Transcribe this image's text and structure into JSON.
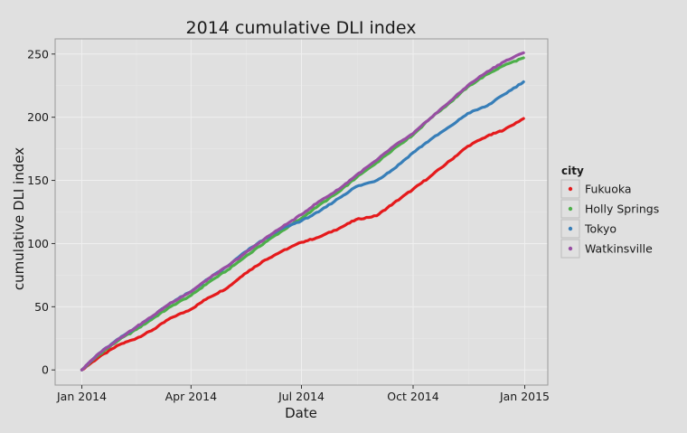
{
  "chart_data": {
    "type": "line",
    "title": "2014 cumulative DLI index",
    "xlabel": "Date",
    "ylabel": "cumulative DLI index",
    "x_ticks": [
      "2014-01-01",
      "2014-04-01",
      "2014-07-01",
      "2014-10-01",
      "2015-01-01"
    ],
    "x_tick_labels": [
      "Jan 2014",
      "Apr 2014",
      "Jul 2014",
      "Oct 2014",
      "Jan 2015"
    ],
    "xlim": [
      "2013-12-10",
      "2015-01-20"
    ],
    "y_ticks": [
      0,
      50,
      100,
      150,
      200,
      250
    ],
    "ylim": [
      -12,
      262
    ],
    "grid": true,
    "legend": {
      "title": "city",
      "position": "right"
    },
    "series": [
      {
        "name": "Fukuoka",
        "color": "#e41a1c",
        "x": [
          "2014-01-01",
          "2014-01-15",
          "2014-02-01",
          "2014-02-15",
          "2014-03-01",
          "2014-03-15",
          "2014-04-01",
          "2014-04-15",
          "2014-05-01",
          "2014-05-15",
          "2014-06-01",
          "2014-06-15",
          "2014-07-01",
          "2014-07-15",
          "2014-08-01",
          "2014-08-15",
          "2014-09-01",
          "2014-09-15",
          "2014-10-01",
          "2014-10-15",
          "2014-11-01",
          "2014-11-15",
          "2014-12-01",
          "2014-12-15",
          "2014-12-31"
        ],
        "values": [
          0,
          10,
          20,
          25,
          32,
          41,
          48,
          57,
          65,
          76,
          87,
          94,
          101,
          105,
          112,
          119,
          122,
          132,
          143,
          153,
          166,
          177,
          185,
          190,
          199
        ]
      },
      {
        "name": "Holly Springs",
        "color": "#4daf4a",
        "x": [
          "2014-01-01",
          "2014-01-15",
          "2014-02-01",
          "2014-02-15",
          "2014-03-01",
          "2014-03-15",
          "2014-04-01",
          "2014-04-15",
          "2014-05-01",
          "2014-05-15",
          "2014-06-01",
          "2014-06-15",
          "2014-07-01",
          "2014-07-15",
          "2014-08-01",
          "2014-08-15",
          "2014-09-01",
          "2014-09-15",
          "2014-10-01",
          "2014-10-15",
          "2014-11-01",
          "2014-11-15",
          "2014-12-01",
          "2014-12-15",
          "2014-12-31"
        ],
        "values": [
          0,
          12,
          24,
          32,
          41,
          50,
          59,
          69,
          79,
          89,
          101,
          110,
          120,
          130,
          141,
          152,
          164,
          175,
          186,
          199,
          212,
          224,
          234,
          241,
          247
        ]
      },
      {
        "name": "Tokyo",
        "color": "#377eb8",
        "x": [
          "2014-01-01",
          "2014-01-15",
          "2014-02-01",
          "2014-02-15",
          "2014-03-01",
          "2014-03-15",
          "2014-04-01",
          "2014-04-15",
          "2014-05-01",
          "2014-05-15",
          "2014-06-01",
          "2014-06-15",
          "2014-07-01",
          "2014-07-15",
          "2014-08-01",
          "2014-08-15",
          "2014-09-01",
          "2014-09-15",
          "2014-10-01",
          "2014-10-15",
          "2014-11-01",
          "2014-11-15",
          "2014-12-01",
          "2014-12-15",
          "2014-12-31"
        ],
        "values": [
          0,
          13,
          25,
          34,
          43,
          53,
          62,
          72,
          82,
          93,
          104,
          112,
          118,
          125,
          136,
          145,
          150,
          159,
          172,
          182,
          193,
          203,
          209,
          218,
          228
        ]
      },
      {
        "name": "Watkinsville",
        "color": "#984ea3",
        "x": [
          "2014-01-01",
          "2014-01-15",
          "2014-02-01",
          "2014-02-15",
          "2014-03-01",
          "2014-03-15",
          "2014-04-01",
          "2014-04-15",
          "2014-05-01",
          "2014-05-15",
          "2014-06-01",
          "2014-06-15",
          "2014-07-01",
          "2014-07-15",
          "2014-08-01",
          "2014-08-15",
          "2014-09-01",
          "2014-09-15",
          "2014-10-01",
          "2014-10-15",
          "2014-11-01",
          "2014-11-15",
          "2014-12-01",
          "2014-12-15",
          "2014-12-31"
        ],
        "values": [
          0,
          13,
          25,
          34,
          43,
          53,
          62,
          72,
          82,
          92,
          104,
          113,
          123,
          133,
          143,
          154,
          166,
          177,
          187,
          199,
          213,
          225,
          236,
          244,
          251
        ]
      }
    ]
  }
}
